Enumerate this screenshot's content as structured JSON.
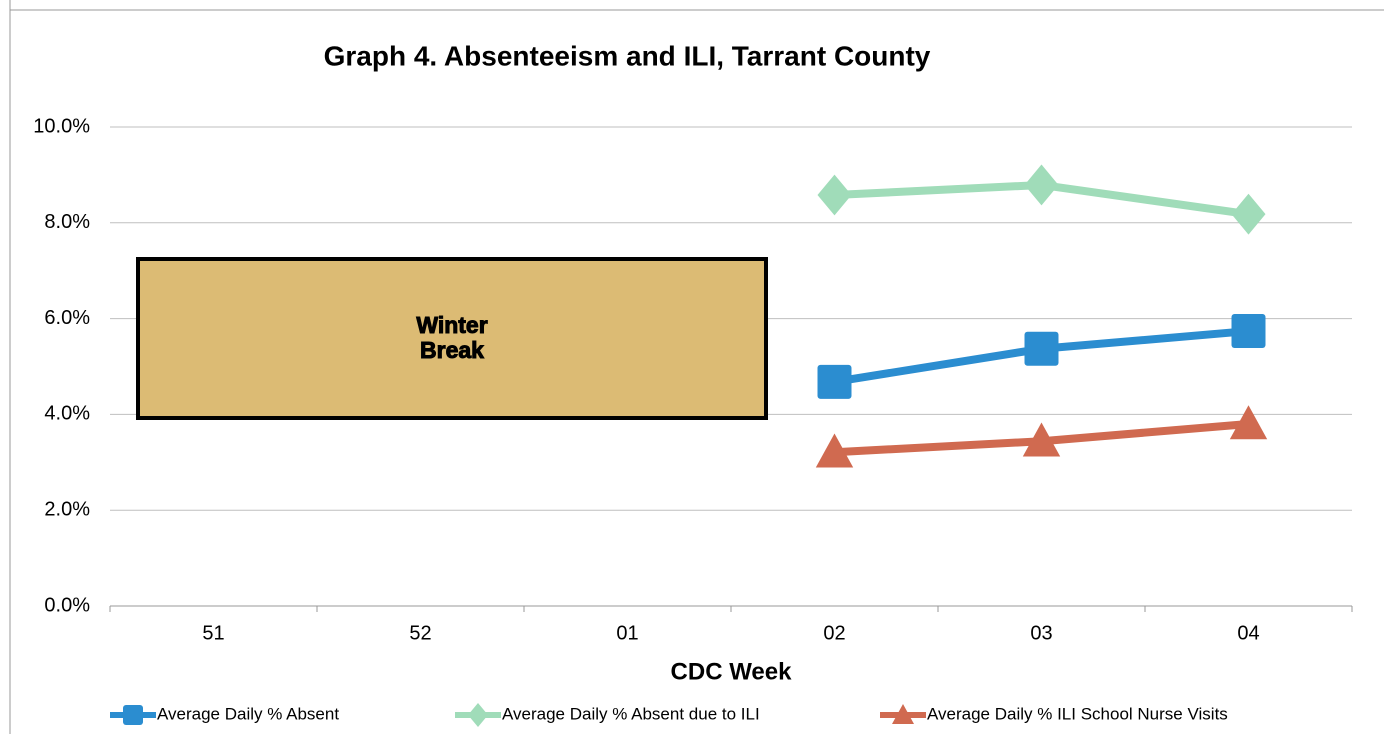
{
  "chart_data": {
    "type": "line",
    "title": "Graph 4. Absenteeism and ILI, Tarrant County",
    "xlabel": "CDC Week",
    "categories": [
      "51",
      "52",
      "01",
      "02",
      "03",
      "04"
    ],
    "series": [
      {
        "name": "Average Daily % Absent",
        "color": "#2b8dd0",
        "marker": "square",
        "values": [
          null,
          null,
          null,
          4.68,
          5.37,
          5.74
        ]
      },
      {
        "name": "Average Daily % Absent due to ILI",
        "color": "#a0dcb9",
        "marker": "diamond",
        "values": [
          null,
          null,
          null,
          8.58,
          8.79,
          8.18
        ]
      },
      {
        "name": "Average Daily % ILI School Nurse Visits",
        "color": "#d06a50",
        "marker": "triangle",
        "values": [
          null,
          null,
          null,
          3.21,
          3.44,
          3.8
        ]
      }
    ],
    "ylim": [
      0,
      10
    ],
    "yticks": [
      {
        "value": 0,
        "label": "0.0%"
      },
      {
        "value": 2,
        "label": "2.0%"
      },
      {
        "value": 4,
        "label": "4.0%"
      },
      {
        "value": 6,
        "label": "6.0%"
      },
      {
        "value": 8,
        "label": "8.0%"
      },
      {
        "value": 10,
        "label": "10.0%"
      }
    ],
    "grid": true,
    "legend": "bottom",
    "annotations": [
      {
        "text": "Winter Break",
        "fill": "#dcbb74"
      }
    ]
  }
}
